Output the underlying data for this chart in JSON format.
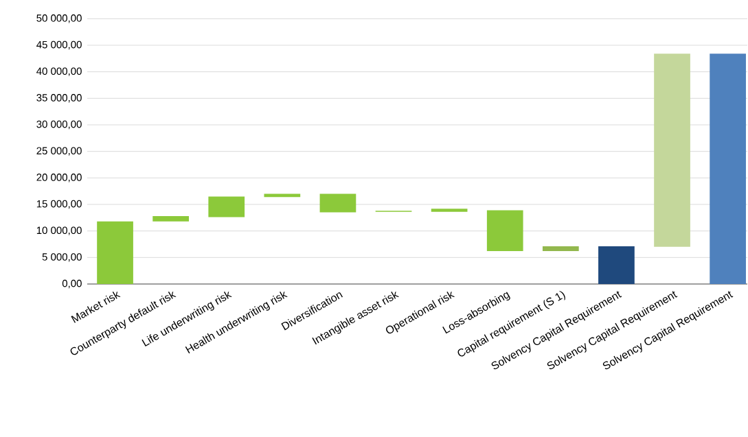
{
  "chart_data": {
    "type": "bar",
    "categories": [
      "Market risk",
      "Counterparty default risk",
      "Life underwriting risk",
      "Health underwriting risk",
      "Diversification",
      "Intangible asset risk",
      "Operational risk",
      "Loss-absorbing",
      "Capital requirement (S 1)",
      "Solvency Capital Requirement",
      "Solvency Capital Requirement",
      "Solvency Capital Requirement"
    ],
    "base": [
      0,
      11800,
      12600,
      16400,
      17000,
      13600,
      13600,
      13900,
      6200,
      0,
      7000,
      0
    ],
    "values": [
      11800,
      1000,
      3900,
      600,
      -3500,
      200,
      600,
      -7700,
      900,
      7100,
      36400,
      43400
    ],
    "colors": [
      "#8cc93a",
      "#8cc93a",
      "#8cc93a",
      "#8cc93a",
      "#8cc93a",
      "#8cc93a",
      "#8cc93a",
      "#8cc93a",
      "#93b84e",
      "#1f497d",
      "#c4d79b",
      "#4f81bd"
    ],
    "ylim": [
      0,
      50000
    ],
    "yticks": [
      {
        "value": 0,
        "label": "0,00"
      },
      {
        "value": 5000,
        "label": "5 000,00"
      },
      {
        "value": 10000,
        "label": "10 000,00"
      },
      {
        "value": 15000,
        "label": "15 000,00"
      },
      {
        "value": 20000,
        "label": "20 000,00"
      },
      {
        "value": 25000,
        "label": "25 000,00"
      },
      {
        "value": 30000,
        "label": "30 000,00"
      },
      {
        "value": 35000,
        "label": "35 000,00"
      },
      {
        "value": 40000,
        "label": "40 000,00"
      },
      {
        "value": 45000,
        "label": "45 000,00"
      },
      {
        "value": 50000,
        "label": "50 000,00"
      }
    ],
    "grid": "y",
    "legend": false
  }
}
